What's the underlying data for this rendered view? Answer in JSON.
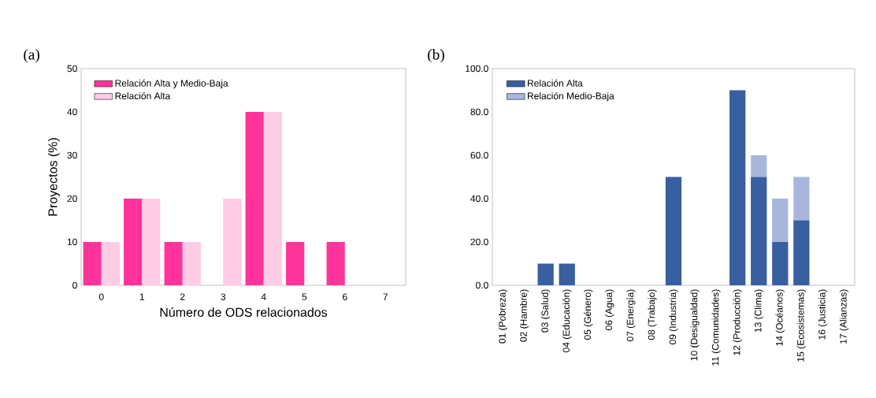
{
  "chart_data": [
    {
      "type": "bar",
      "annotations": [
        "(a)"
      ],
      "xlabel": "Número de ODS relacionados",
      "ylabel": "Proyectos (%)",
      "categories": [
        "0",
        "1",
        "2",
        "3",
        "4",
        "5",
        "6",
        "7"
      ],
      "series": [
        {
          "name": "Relación Alta y Medio-Baja",
          "color": "#ff3399",
          "values": [
            10,
            20,
            10,
            0,
            40,
            10,
            10,
            0
          ]
        },
        {
          "name": "Relación Alta",
          "color": "#ffcce5",
          "values": [
            10,
            20,
            10,
            20,
            40,
            0,
            0,
            0
          ]
        }
      ],
      "ylim": [
        0,
        50
      ],
      "yticks": [
        0,
        10,
        20,
        30,
        40,
        50
      ],
      "legend": "top left",
      "grid": false
    },
    {
      "type": "bar",
      "annotations": [
        "(b)"
      ],
      "stacked": true,
      "categories": [
        "01 (Pobreza)",
        "02 (Hambre)",
        "03 (Salud)",
        "04 (Educación)",
        "05 (Género)",
        "06 (Agua)",
        "07 (Energía)",
        "08 (Trabajo)",
        "09 (Industria)",
        "10 (Desigualdad)",
        "11 (Comunidades)",
        "12 (Producción)",
        "13 (Clima)",
        "14 (Océanos)",
        "15 (Ecosistemas)",
        "16 (Justicia)",
        "17 (Alianzas)"
      ],
      "series": [
        {
          "name": "Relación Alta",
          "color": "#3a5fa0",
          "values": [
            0,
            0,
            10,
            10,
            0,
            0,
            0,
            0,
            50,
            0,
            0,
            90,
            50,
            20,
            30,
            0,
            0
          ]
        },
        {
          "name": "Relación Medio-Baja",
          "color": "#a9b6dc",
          "values": [
            0,
            0,
            0,
            0,
            0,
            0,
            0,
            0,
            0,
            0,
            0,
            0,
            10,
            20,
            20,
            0,
            0
          ]
        }
      ],
      "ylim": [
        0,
        100
      ],
      "yticks": [
        {
          "value": 0,
          "label": "0.0"
        },
        {
          "value": 20,
          "label": "20.0"
        },
        {
          "value": 40,
          "label": "40.0"
        },
        {
          "value": 60,
          "label": "60.0"
        },
        {
          "value": 80,
          "label": "80.0"
        },
        {
          "value": 100,
          "label": "100.0"
        }
      ],
      "legend": "top left",
      "grid": false
    }
  ]
}
